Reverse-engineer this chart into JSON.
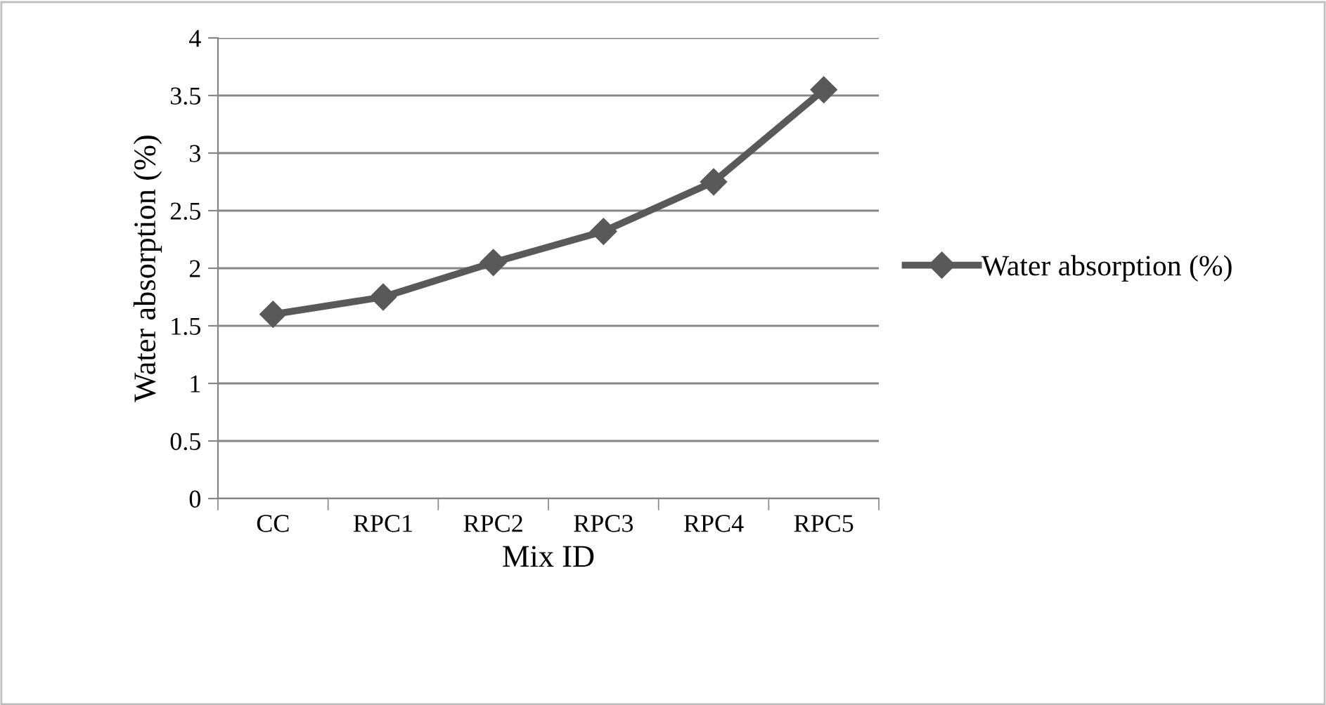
{
  "chart_data": {
    "type": "line",
    "xlabel": "Mix ID",
    "ylabel": "Water absorption (%)",
    "categories": [
      "CC",
      "RPC1",
      "RPC2",
      "RPC3",
      "RPC4",
      "RPC5"
    ],
    "series": [
      {
        "name": "Water absorption (%)",
        "color": "#595959",
        "values": [
          1.6,
          1.75,
          2.05,
          2.32,
          2.75,
          3.55
        ]
      }
    ],
    "ylim": [
      0,
      4
    ],
    "yticks": [
      0,
      0.5,
      1,
      1.5,
      2,
      2.5,
      3,
      3.5,
      4
    ],
    "grid": "y",
    "legend": "right",
    "marker": "diamond",
    "line_style": "solid"
  }
}
